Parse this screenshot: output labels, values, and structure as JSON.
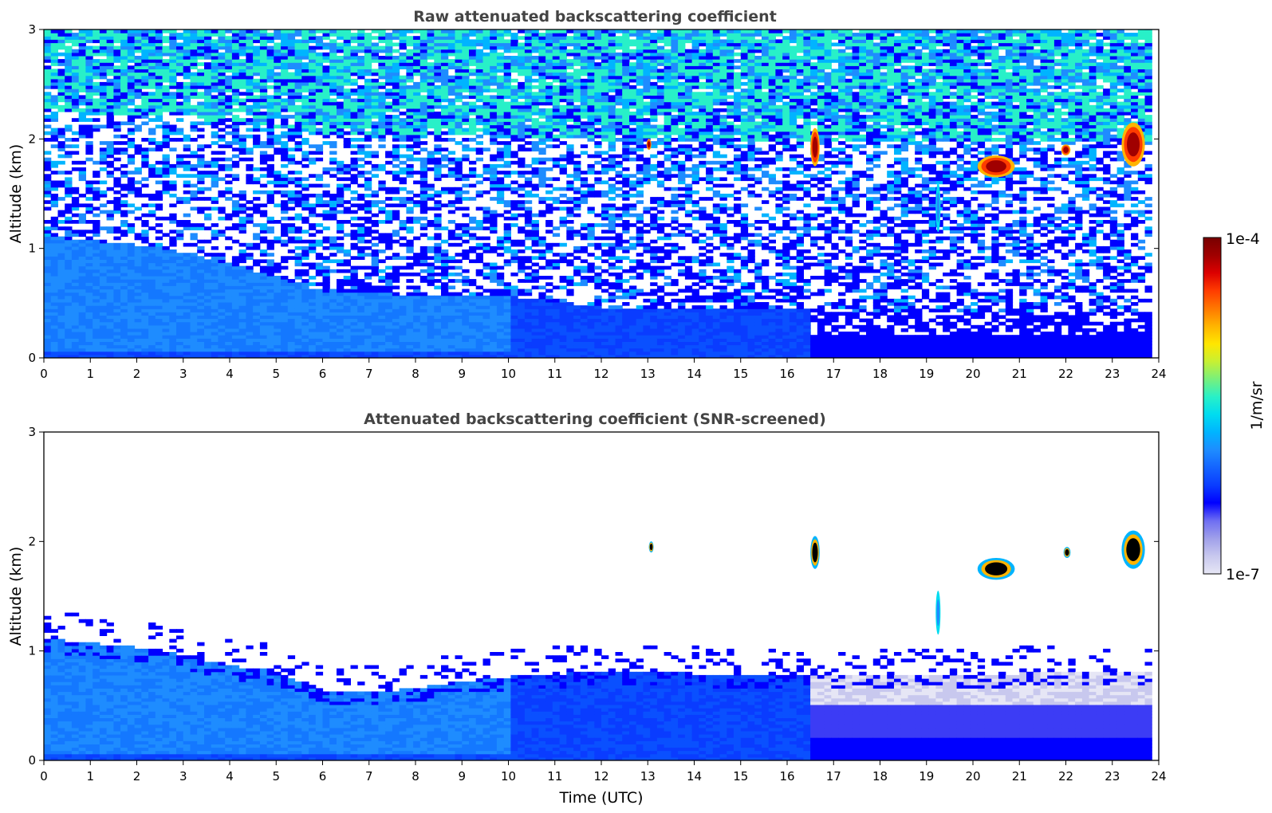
{
  "figure": {
    "colorbar": {
      "max_label": "1e-4",
      "min_label": "1e-7",
      "unit_label": "1/m/sr",
      "colors": [
        "#e6e6f5",
        "#c8c8ee",
        "#a0a0ea",
        "#6e6ef2",
        "#0000ff",
        "#0a3cff",
        "#1464ff",
        "#1e8cff",
        "#00b4ff",
        "#00dcf0",
        "#28f0c8",
        "#78f07c",
        "#c8f032",
        "#ffe600",
        "#ffb400",
        "#ff7800",
        "#ff3c00",
        "#dc0000",
        "#a00000",
        "#780000"
      ]
    }
  },
  "chart_data": [
    {
      "type": "heatmap",
      "title": "Raw attenuated backscattering coefficient",
      "xlabel": "",
      "ylabel": "Altitude (km)",
      "xlim": [
        0,
        24
      ],
      "ylim": [
        0,
        3
      ],
      "x_ticks": [
        "0",
        "1",
        "2",
        "3",
        "4",
        "5",
        "6",
        "7",
        "8",
        "9",
        "10",
        "11",
        "12",
        "13",
        "14",
        "15",
        "16",
        "17",
        "18",
        "19",
        "20",
        "21",
        "22",
        "23",
        "24"
      ],
      "y_ticks": [
        "0",
        "1",
        "2",
        "3"
      ],
      "colorscale": "log10 attenuated backscatter, 1e-7 to 1e-4 1/m/sr",
      "grid": false,
      "boundary_layer_top_km": [
        [
          0,
          1.1
        ],
        [
          2.5,
          1.0
        ],
        [
          4,
          0.85
        ],
        [
          6,
          0.6
        ],
        [
          8,
          0.55
        ],
        [
          10,
          0.55
        ],
        [
          12,
          0.45
        ],
        [
          16.5,
          0.45
        ],
        [
          17,
          0.4
        ],
        [
          24,
          0.4
        ]
      ],
      "features": [
        {
          "x": [
            16.5,
            16.7
          ],
          "y": [
            1.75,
            2.1
          ],
          "level": "high"
        },
        {
          "x": [
            20.1,
            20.9
          ],
          "y": [
            1.65,
            1.85
          ],
          "level": "high"
        },
        {
          "x": [
            21.9,
            22.1
          ],
          "y": [
            1.85,
            1.95
          ],
          "level": "high"
        },
        {
          "x": [
            23.2,
            23.7
          ],
          "y": [
            1.75,
            2.15
          ],
          "level": "high"
        },
        {
          "x": [
            13.0,
            13.05
          ],
          "y": [
            1.9,
            2.0
          ],
          "level": "high"
        },
        {
          "x": [
            19.2,
            19.3
          ],
          "y": [
            1.15,
            1.6
          ],
          "level": "medium"
        }
      ]
    },
    {
      "type": "heatmap",
      "title": "Attenuated backscattering coefficient (SNR-screened)",
      "xlabel": "Time (UTC)",
      "ylabel": "Altitude (km)",
      "xlim": [
        0,
        24
      ],
      "ylim": [
        0,
        3
      ],
      "x_ticks": [
        "0",
        "1",
        "2",
        "3",
        "4",
        "5",
        "6",
        "7",
        "8",
        "9",
        "10",
        "11",
        "12",
        "13",
        "14",
        "15",
        "16",
        "17",
        "18",
        "19",
        "20",
        "21",
        "22",
        "23",
        "24"
      ],
      "y_ticks": [
        "0",
        "1",
        "2",
        "3"
      ],
      "colorscale": "log10 attenuated backscatter, 1e-7 to 1e-4 1/m/sr",
      "grid": false,
      "boundary_layer_top_km": [
        [
          0,
          1.1
        ],
        [
          2.5,
          1.0
        ],
        [
          4,
          0.85
        ],
        [
          5,
          0.8
        ],
        [
          6,
          0.62
        ],
        [
          7,
          0.6
        ],
        [
          8,
          0.65
        ],
        [
          10,
          0.75
        ],
        [
          12,
          0.8
        ],
        [
          16.5,
          0.75
        ],
        [
          24,
          0.8
        ]
      ],
      "features": [
        {
          "x": [
            16.5,
            16.7
          ],
          "y": [
            1.75,
            2.05
          ],
          "level": "saturated"
        },
        {
          "x": [
            20.1,
            20.9
          ],
          "y": [
            1.65,
            1.85
          ],
          "level": "saturated"
        },
        {
          "x": [
            21.95,
            22.1
          ],
          "y": [
            1.85,
            1.95
          ],
          "level": "saturated"
        },
        {
          "x": [
            23.2,
            23.7
          ],
          "y": [
            1.75,
            2.1
          ],
          "level": "saturated"
        },
        {
          "x": [
            13.05,
            13.1
          ],
          "y": [
            1.9,
            2.0
          ],
          "level": "saturated"
        },
        {
          "x": [
            19.2,
            19.3
          ],
          "y": [
            1.15,
            1.55
          ],
          "level": "medium"
        }
      ]
    }
  ]
}
